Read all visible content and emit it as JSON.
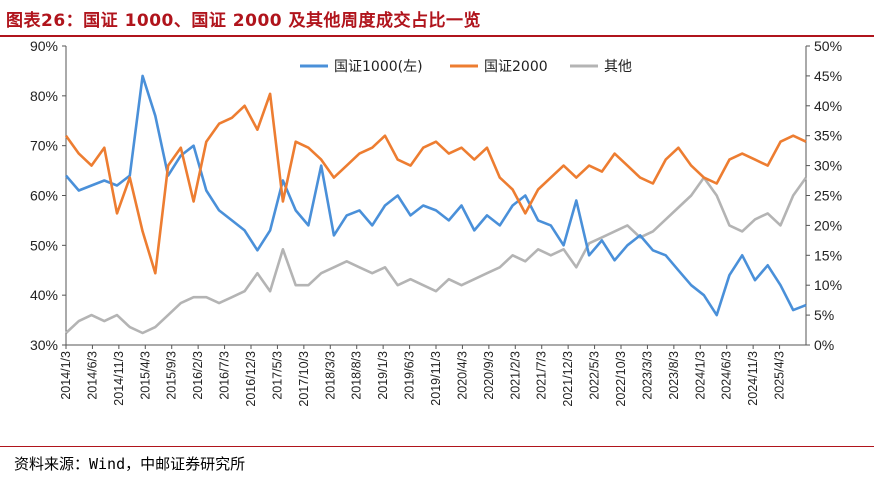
{
  "header": {
    "title": "图表26：国证 1000、国证 2000 及其他周度成交占比一览"
  },
  "footer": {
    "source": "资料来源：Wind，中邮证券研究所"
  },
  "colors": {
    "g1000": "#4a90d9",
    "g2000": "#ed7d31",
    "other": "#b4b4b4",
    "title": "#b0141c"
  },
  "chart_data": {
    "type": "line",
    "legend_position": "top-center",
    "grid": false,
    "left_axis": {
      "ylim": [
        30,
        90
      ],
      "ticks": [
        "30%",
        "40%",
        "50%",
        "60%",
        "70%",
        "80%",
        "90%"
      ]
    },
    "right_axis": {
      "ylim": [
        0,
        50
      ],
      "ticks": [
        "0%",
        "5%",
        "10%",
        "15%",
        "20%",
        "25%",
        "30%",
        "35%",
        "40%",
        "45%",
        "50%"
      ]
    },
    "x_ticks": [
      "2014/1/3",
      "2014/6/3",
      "2014/11/3",
      "2015/4/3",
      "2015/9/3",
      "2016/2/3",
      "2016/7/3",
      "2016/12/3",
      "2017/5/3",
      "2017/10/3",
      "2018/3/3",
      "2018/8/3",
      "2019/1/3",
      "2019/6/3",
      "2019/11/3",
      "2020/4/3",
      "2020/9/3",
      "2021/2/3",
      "2021/7/3",
      "2021/12/3",
      "2022/5/3",
      "2022/10/3",
      "2023/3/3",
      "2023/8/3",
      "2024/1/3",
      "2024/6/3",
      "2024/11/3",
      "2025/4/3"
    ],
    "x": [
      "2014-01",
      "2014-03",
      "2014-06",
      "2014-09",
      "2014-11",
      "2015-02",
      "2015-04",
      "2015-05",
      "2015-06",
      "2015-07",
      "2015-09",
      "2015-12",
      "2016-02",
      "2016-05",
      "2016-07",
      "2016-09",
      "2016-12",
      "2017-02",
      "2017-05",
      "2017-08",
      "2017-10",
      "2018-01",
      "2018-03",
      "2018-06",
      "2018-08",
      "2018-11",
      "2019-01",
      "2019-03",
      "2019-06",
      "2019-09",
      "2019-11",
      "2020-02",
      "2020-04",
      "2020-07",
      "2020-09",
      "2020-12",
      "2021-02",
      "2021-05",
      "2021-07",
      "2021-10",
      "2021-12",
      "2022-03",
      "2022-05",
      "2022-08",
      "2022-10",
      "2023-01",
      "2023-03",
      "2023-06",
      "2023-08",
      "2023-11",
      "2024-01",
      "2024-02",
      "2024-04",
      "2024-06",
      "2024-09",
      "2024-11",
      "2025-02",
      "2025-04",
      "2025-06"
    ],
    "series": [
      {
        "name": "国证1000(左)",
        "axis": "left",
        "values": [
          64,
          61,
          62,
          63,
          62,
          64,
          84,
          76,
          64,
          68,
          70,
          61,
          57,
          55,
          53,
          49,
          53,
          63,
          57,
          54,
          66,
          52,
          56,
          57,
          54,
          58,
          60,
          56,
          58,
          57,
          55,
          58,
          53,
          56,
          54,
          58,
          60,
          55,
          54,
          50,
          59,
          48,
          51,
          47,
          50,
          52,
          49,
          48,
          45,
          42,
          40,
          36,
          44,
          48,
          43,
          46,
          42,
          37,
          38
        ]
      },
      {
        "name": "国证2000",
        "axis": "right",
        "values": [
          35,
          32,
          30,
          33,
          22,
          28,
          19,
          12,
          30,
          33,
          24,
          34,
          37,
          38,
          40,
          36,
          42,
          24,
          34,
          33,
          31,
          28,
          30,
          32,
          33,
          35,
          31,
          30,
          33,
          34,
          32,
          33,
          31,
          33,
          28,
          26,
          22,
          26,
          28,
          30,
          28,
          30,
          29,
          32,
          30,
          28,
          27,
          31,
          33,
          30,
          28,
          27,
          31,
          32,
          31,
          30,
          34,
          35,
          34
        ]
      },
      {
        "name": "其他",
        "axis": "right",
        "values": [
          2,
          4,
          5,
          4,
          5,
          3,
          2,
          3,
          5,
          7,
          8,
          8,
          7,
          8,
          9,
          12,
          9,
          16,
          10,
          10,
          12,
          13,
          14,
          13,
          12,
          13,
          10,
          11,
          10,
          9,
          11,
          10,
          11,
          12,
          13,
          15,
          14,
          16,
          15,
          16,
          13,
          17,
          18,
          19,
          20,
          18,
          19,
          21,
          23,
          25,
          28,
          25,
          20,
          19,
          21,
          22,
          20,
          25,
          28
        ]
      }
    ]
  }
}
